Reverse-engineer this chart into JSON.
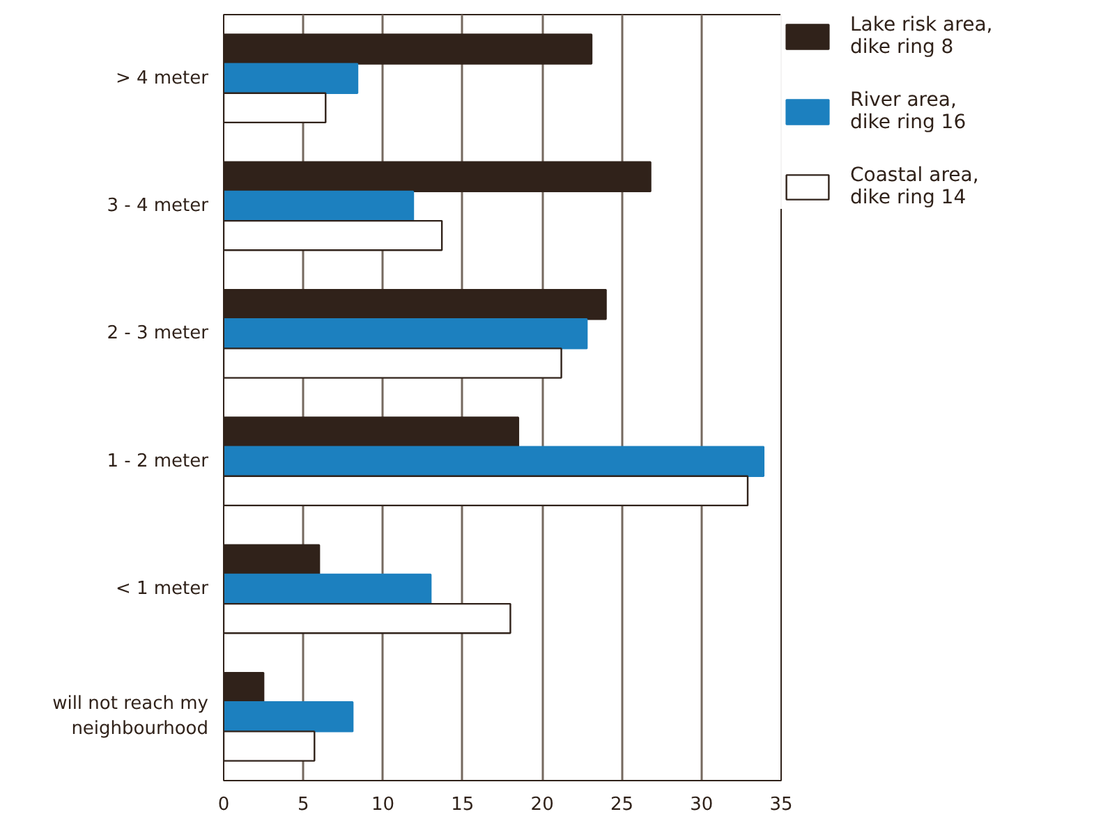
{
  "chart_data": {
    "type": "bar",
    "orientation": "horizontal",
    "categories": [
      "> 4 meter",
      "3 - 4 meter",
      "2 - 3 meter",
      "1 - 2 meter",
      "< 1 meter",
      "will not reach my neighbourhood"
    ],
    "series": [
      {
        "name": "Lake risk area, dike ring 8",
        "color": "#30221a",
        "values": [
          23.1,
          26.8,
          24.0,
          18.5,
          6.0,
          2.5
        ]
      },
      {
        "name": "River area, dike ring 16",
        "color": "#1c80bf",
        "values": [
          8.4,
          11.9,
          22.8,
          33.9,
          13.0,
          8.1
        ]
      },
      {
        "name": "Coastal area, dike ring 14",
        "color": "#ffffff",
        "values": [
          6.4,
          13.7,
          21.2,
          32.9,
          18.0,
          5.7
        ]
      }
    ],
    "xlim": [
      0,
      35
    ],
    "xticks": [
      0,
      5,
      10,
      15,
      20,
      25,
      30,
      35
    ],
    "grid": "x",
    "legend": "top right"
  }
}
